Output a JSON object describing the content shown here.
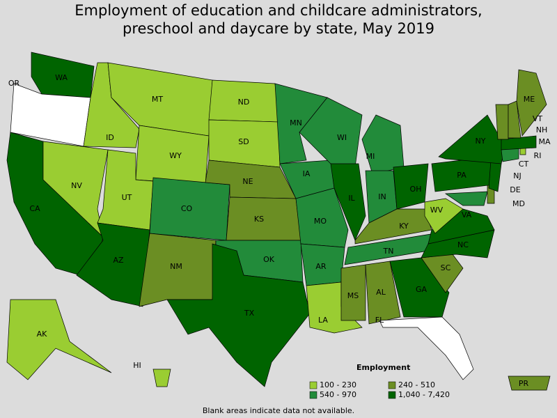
{
  "title": "Employment of education and childcare administrators, preschool and daycare by state, May 2019",
  "footnote": "Blank areas indicate data not available.",
  "background": "#dcdcdc",
  "no_data_color": "#ffffff",
  "legend": {
    "title": "Employment",
    "items": [
      {
        "label": "100 - 230",
        "color": "#9acd32"
      },
      {
        "label": "240 - 510",
        "color": "#6b8e23"
      },
      {
        "label": "540 - 970",
        "color": "#228b3a"
      },
      {
        "label": "1,040 - 7,420",
        "color": "#006400"
      }
    ]
  },
  "states": [
    {
      "abbr": "WA",
      "class": 3
    },
    {
      "abbr": "OR",
      "class": null
    },
    {
      "abbr": "CA",
      "class": 3
    },
    {
      "abbr": "NV",
      "class": 0
    },
    {
      "abbr": "ID",
      "class": 0
    },
    {
      "abbr": "MT",
      "class": 0
    },
    {
      "abbr": "WY",
      "class": 0
    },
    {
      "abbr": "UT",
      "class": 0
    },
    {
      "abbr": "AZ",
      "class": 3
    },
    {
      "abbr": "CO",
      "class": 2
    },
    {
      "abbr": "NM",
      "class": 1
    },
    {
      "abbr": "ND",
      "class": 0
    },
    {
      "abbr": "SD",
      "class": 0
    },
    {
      "abbr": "NE",
      "class": 1
    },
    {
      "abbr": "KS",
      "class": 1
    },
    {
      "abbr": "OK",
      "class": 2
    },
    {
      "abbr": "TX",
      "class": 3
    },
    {
      "abbr": "MN",
      "class": 2
    },
    {
      "abbr": "IA",
      "class": 2
    },
    {
      "abbr": "MO",
      "class": 2
    },
    {
      "abbr": "AR",
      "class": 2
    },
    {
      "abbr": "LA",
      "class": 0
    },
    {
      "abbr": "WI",
      "class": 2
    },
    {
      "abbr": "IL",
      "class": 3
    },
    {
      "abbr": "MI",
      "class": 2
    },
    {
      "abbr": "IN",
      "class": 2
    },
    {
      "abbr": "OH",
      "class": 3
    },
    {
      "abbr": "KY",
      "class": 1
    },
    {
      "abbr": "TN",
      "class": 2
    },
    {
      "abbr": "MS",
      "class": 1
    },
    {
      "abbr": "AL",
      "class": 1
    },
    {
      "abbr": "GA",
      "class": 3
    },
    {
      "abbr": "FL",
      "class": null
    },
    {
      "abbr": "SC",
      "class": 1
    },
    {
      "abbr": "NC",
      "class": 3
    },
    {
      "abbr": "VA",
      "class": 3
    },
    {
      "abbr": "WV",
      "class": 0
    },
    {
      "abbr": "MD",
      "class": 2
    },
    {
      "abbr": "DE",
      "class": 1
    },
    {
      "abbr": "PA",
      "class": 3
    },
    {
      "abbr": "NJ",
      "class": 3
    },
    {
      "abbr": "NY",
      "class": 3
    },
    {
      "abbr": "CT",
      "class": 2
    },
    {
      "abbr": "RI",
      "class": 0
    },
    {
      "abbr": "MA",
      "class": 3
    },
    {
      "abbr": "VT",
      "class": 1
    },
    {
      "abbr": "NH",
      "class": 1
    },
    {
      "abbr": "ME",
      "class": 1
    },
    {
      "abbr": "AK",
      "class": 0
    },
    {
      "abbr": "HI",
      "class": 0
    },
    {
      "abbr": "PR",
      "class": 1
    }
  ]
}
